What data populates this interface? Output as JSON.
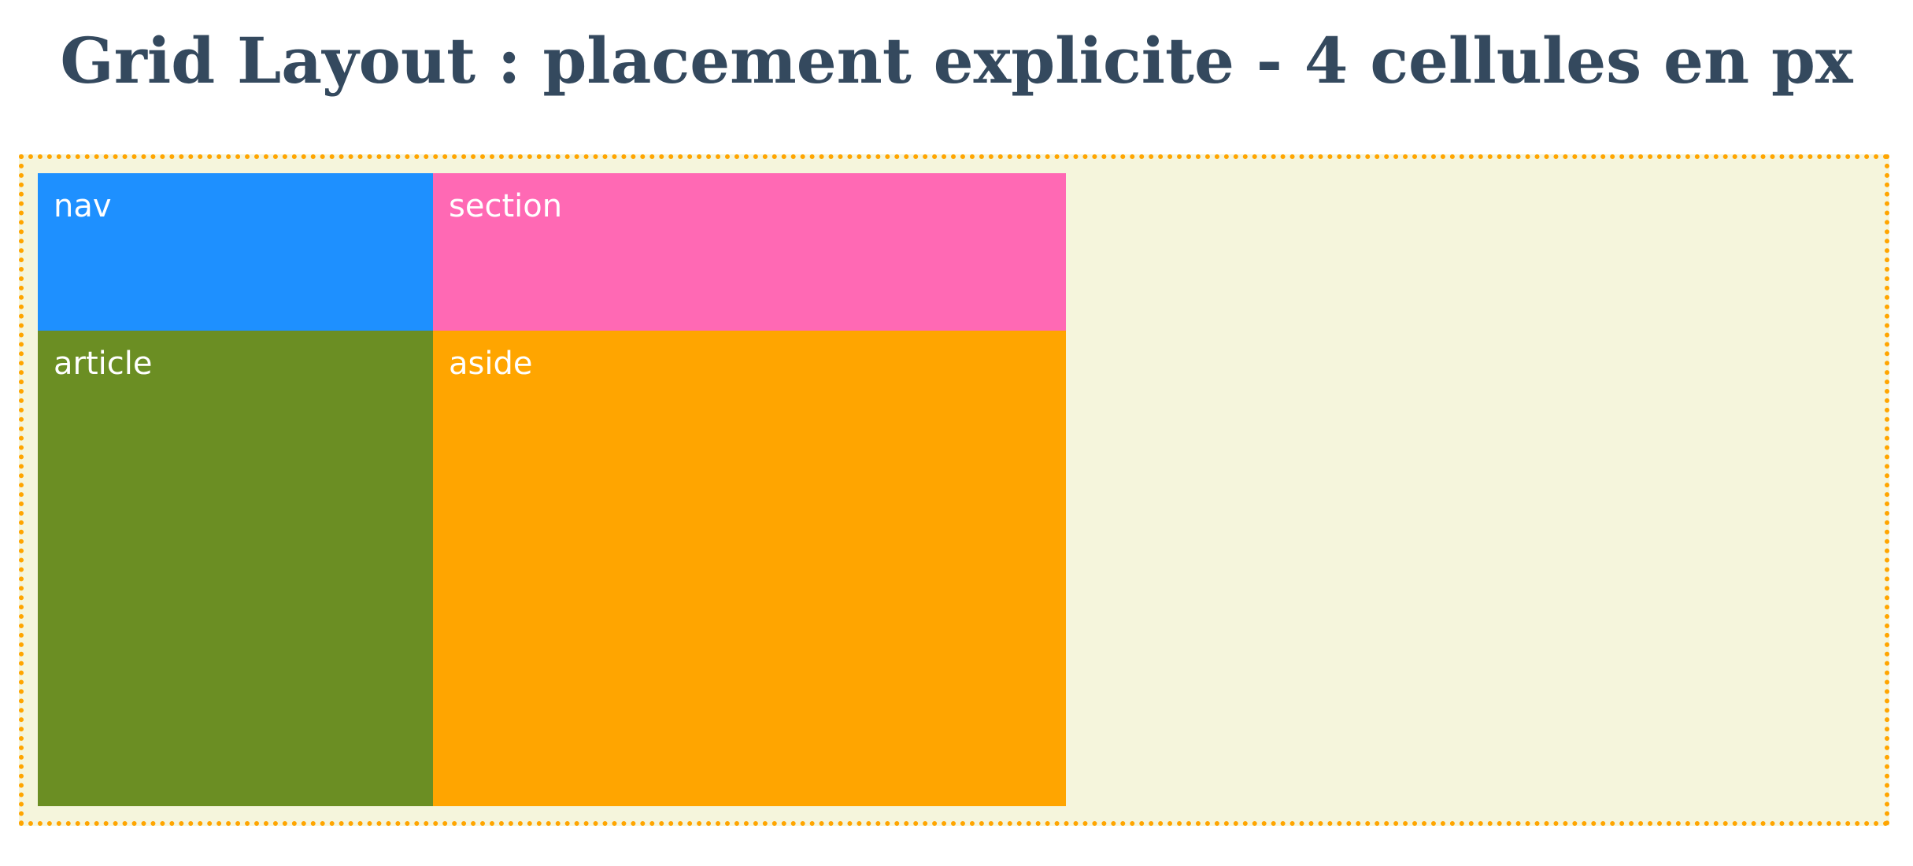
{
  "page": {
    "title": "Grid Layout : placement explicite - 4 cellules en px"
  },
  "colors": {
    "title": "#34495e",
    "container_background": "#f5f5dc",
    "container_border": "#ffa500",
    "nav": "#1e90ff",
    "section": "#ff69b4",
    "article": "#6b8e23",
    "aside": "#ffa500",
    "cell_text": "#ffffff"
  },
  "grid": {
    "cells": [
      {
        "key": "nav",
        "label": "nav"
      },
      {
        "key": "section",
        "label": "section"
      },
      {
        "key": "article",
        "label": "article"
      },
      {
        "key": "aside",
        "label": "aside"
      }
    ]
  }
}
